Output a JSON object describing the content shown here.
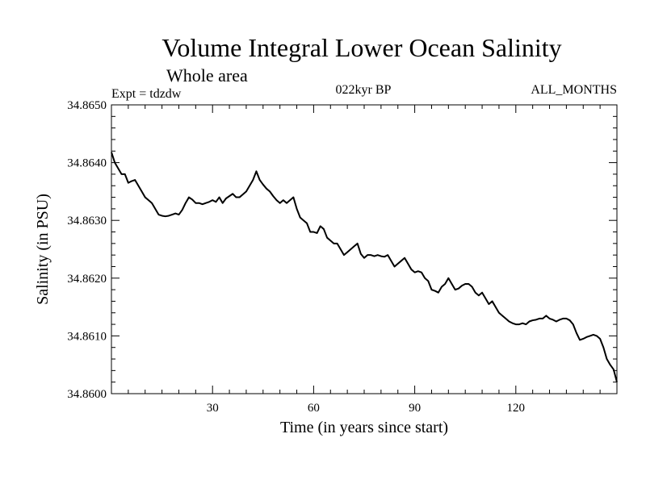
{
  "chart_data": {
    "type": "line",
    "title": "Volume Integral Lower Ocean Salinity",
    "subtitle": "Whole area",
    "experiment": "Expt = tdzdw",
    "period": "022kyr BP",
    "months": "ALL_MONTHS",
    "xlabel": "Time (in years since start)",
    "ylabel": "Salinity (in PSU)",
    "xlim": [
      0,
      150
    ],
    "ylim": [
      34.86,
      34.865
    ],
    "x_ticks": [
      30,
      60,
      90,
      120
    ],
    "x_tick_labels": [
      "30",
      "60",
      "90",
      "120"
    ],
    "y_ticks": [
      34.86,
      34.861,
      34.862,
      34.863,
      34.864,
      34.865
    ],
    "y_tick_labels": [
      "34.8600",
      "34.8610",
      "34.8620",
      "34.8630",
      "34.8640",
      "34.8650"
    ],
    "series": [
      {
        "name": "Salinity",
        "x": [
          0,
          1,
          2,
          3,
          4,
          5,
          6,
          7,
          8,
          9,
          10,
          11,
          12,
          13,
          14,
          15,
          16,
          17,
          18,
          19,
          20,
          21,
          22,
          23,
          24,
          25,
          26,
          27,
          28,
          29,
          30,
          31,
          32,
          33,
          34,
          35,
          36,
          37,
          38,
          39,
          40,
          41,
          42,
          43,
          44,
          45,
          46,
          47,
          48,
          49,
          50,
          51,
          52,
          53,
          54,
          55,
          56,
          57,
          58,
          59,
          60,
          61,
          62,
          63,
          64,
          65,
          66,
          67,
          68,
          69,
          70,
          71,
          72,
          73,
          74,
          75,
          76,
          77,
          78,
          79,
          80,
          81,
          82,
          83,
          84,
          85,
          86,
          87,
          88,
          89,
          90,
          91,
          92,
          93,
          94,
          95,
          96,
          97,
          98,
          99,
          100,
          101,
          102,
          103,
          104,
          105,
          106,
          107,
          108,
          109,
          110,
          111,
          112,
          113,
          114,
          115,
          116,
          117,
          118,
          119,
          120,
          121,
          122,
          123,
          124,
          125,
          126,
          127,
          128,
          129,
          130,
          131,
          132,
          133,
          134,
          135,
          136,
          137,
          138,
          139,
          140,
          141,
          142,
          143,
          144,
          145,
          146,
          147,
          148,
          149,
          150
        ],
        "y": [
          34.86418,
          34.864,
          34.8639,
          34.8638,
          34.8638,
          34.86365,
          34.86368,
          34.8637,
          34.8636,
          34.8635,
          34.8634,
          34.86335,
          34.8633,
          34.8632,
          34.8631,
          34.86308,
          34.86307,
          34.86308,
          34.8631,
          34.86312,
          34.8631,
          34.86318,
          34.8633,
          34.8634,
          34.86336,
          34.8633,
          34.8633,
          34.86328,
          34.8633,
          34.86332,
          34.86335,
          34.86332,
          34.8634,
          34.8633,
          34.86338,
          34.86342,
          34.86346,
          34.8634,
          34.8634,
          34.86345,
          34.8635,
          34.8636,
          34.8637,
          34.86385,
          34.8637,
          34.86362,
          34.86355,
          34.8635,
          34.86342,
          34.86335,
          34.8633,
          34.86335,
          34.8633,
          34.86335,
          34.8634,
          34.8632,
          34.86305,
          34.863,
          34.86295,
          34.8628,
          34.8628,
          34.86278,
          34.8629,
          34.86285,
          34.8627,
          34.86265,
          34.8626,
          34.8626,
          34.8625,
          34.8624,
          34.86245,
          34.8625,
          34.86255,
          34.8626,
          34.86242,
          34.86235,
          34.8624,
          34.8624,
          34.86238,
          34.8624,
          34.86238,
          34.86237,
          34.8624,
          34.8623,
          34.8622,
          34.86225,
          34.8623,
          34.86235,
          34.86225,
          34.86215,
          34.8621,
          34.86212,
          34.8621,
          34.862,
          34.86195,
          34.8618,
          34.86178,
          34.86175,
          34.86185,
          34.8619,
          34.862,
          34.8619,
          34.8618,
          34.86182,
          34.86187,
          34.8619,
          34.8619,
          34.86185,
          34.86175,
          34.8617,
          34.86175,
          34.86165,
          34.86155,
          34.8616,
          34.8615,
          34.8614,
          34.86135,
          34.8613,
          34.86125,
          34.86122,
          34.8612,
          34.8612,
          34.86122,
          34.8612,
          34.86125,
          34.86127,
          34.86128,
          34.8613,
          34.8613,
          34.86135,
          34.8613,
          34.86128,
          34.86125,
          34.86128,
          34.8613,
          34.8613,
          34.86127,
          34.8612,
          34.86105,
          34.86093,
          34.86095,
          34.86098,
          34.861,
          34.86102,
          34.861,
          34.86095,
          34.8608,
          34.8606,
          34.8605,
          34.86042,
          34.8602
        ]
      }
    ]
  }
}
